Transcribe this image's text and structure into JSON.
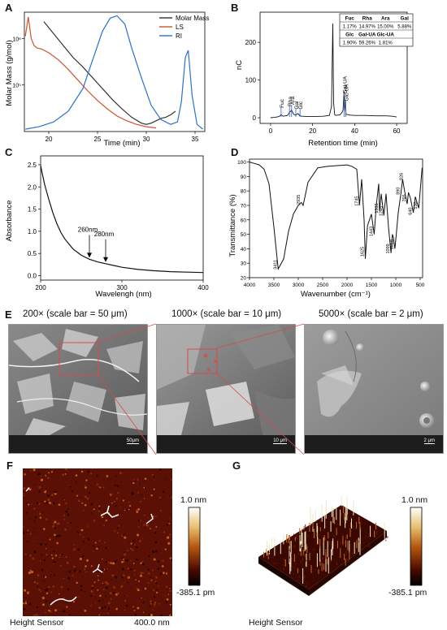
{
  "panels": {
    "A": {
      "label": "A"
    },
    "B": {
      "label": "B"
    },
    "C": {
      "label": "C"
    },
    "D": {
      "label": "D"
    },
    "E": {
      "label": "E"
    },
    "F": {
      "label": "F"
    },
    "G": {
      "label": "G"
    }
  },
  "chart_data": [
    {
      "id": "A",
      "type": "line",
      "xlabel": "Time (min)",
      "ylabel": "Molar Mass (g/mol)",
      "xticks": [
        "20",
        "25",
        "30",
        "35"
      ],
      "yticks": [
        "10⁶",
        "10⁵"
      ],
      "xlim": [
        17.5,
        36
      ],
      "legend_position": "top-right",
      "series": [
        {
          "name": "Molar Mass",
          "color": "#333333",
          "x": [
            19.5,
            20.5,
            21.5,
            22.5,
            23.5,
            24.5,
            25.5,
            26.5,
            27.5,
            28.5,
            29.5,
            30.0,
            30.5,
            31.0,
            31.5,
            32.0,
            32.5,
            33.0
          ],
          "y": [
            0.92,
            0.82,
            0.72,
            0.62,
            0.54,
            0.45,
            0.36,
            0.27,
            0.19,
            0.12,
            0.07,
            0.06,
            0.07,
            0.09,
            0.11,
            0.12,
            0.14,
            0.17
          ]
        },
        {
          "name": "LS",
          "color": "#d0542c",
          "x": [
            17.6,
            17.9,
            18.2,
            18.5,
            18.8,
            19.3,
            20.0,
            21.0,
            22.0,
            23.0,
            24.0,
            25.0,
            26.0,
            27.0,
            28.0,
            29.0,
            30.0,
            31.0
          ],
          "y": [
            0.8,
            0.96,
            0.78,
            0.72,
            0.7,
            0.69,
            0.66,
            0.6,
            0.52,
            0.43,
            0.34,
            0.26,
            0.19,
            0.13,
            0.09,
            0.06,
            0.04,
            0.03
          ]
        },
        {
          "name": "RI",
          "color": "#2a6fd6",
          "x": [
            17.6,
            19.0,
            20.5,
            22.0,
            23.5,
            24.5,
            25.5,
            26.3,
            27.0,
            27.8,
            28.5,
            29.5,
            30.5,
            31.5,
            32.5,
            33.2,
            33.6,
            34.0,
            34.3,
            34.7,
            35.2,
            35.8
          ],
          "y": [
            0.02,
            0.04,
            0.08,
            0.17,
            0.36,
            0.6,
            0.84,
            0.95,
            0.97,
            0.9,
            0.7,
            0.45,
            0.22,
            0.1,
            0.06,
            0.08,
            0.25,
            0.62,
            0.68,
            0.3,
            0.06,
            0.02
          ]
        }
      ]
    },
    {
      "id": "B",
      "type": "line",
      "xlabel": "Retention time (min)",
      "ylabel": "nC",
      "xticks": [
        "0",
        "20",
        "40",
        "60"
      ],
      "yticks": [
        "0",
        "100",
        "200"
      ],
      "xlim": [
        -5,
        65
      ],
      "ylim": [
        -15,
        280
      ],
      "series": [
        {
          "name": "",
          "color": "#111111",
          "x": [
            0,
            2,
            4,
            5,
            6,
            8,
            9,
            10,
            11,
            12,
            13,
            14,
            15,
            18,
            20,
            25,
            28,
            29,
            29.6,
            30,
            30.5,
            31,
            33,
            34,
            34.5,
            35,
            35.5,
            36,
            38,
            40,
            45,
            50,
            55,
            58,
            60
          ],
          "y": [
            0,
            1,
            3,
            8,
            4,
            6,
            14,
            20,
            9,
            7,
            11,
            5,
            4,
            3,
            3,
            4,
            6,
            30,
            250,
            40,
            8,
            6,
            8,
            14,
            20,
            70,
            25,
            9,
            7,
            6,
            6,
            5,
            5,
            4,
            2
          ]
        }
      ],
      "annotations": [
        "Fuc",
        "Rha",
        "Ara",
        "Gal",
        "Glc",
        "Gal-UA",
        "Glc-UA"
      ],
      "table": {
        "header1": [
          "Fuc",
          "Rha",
          "Ara",
          "Gal"
        ],
        "row1": [
          "1.17%",
          "14.97%",
          "15.00%",
          "5.88%"
        ],
        "header2": [
          "Glc",
          "Gal-UA",
          "Glc-UA",
          ""
        ],
        "row2": [
          "1.90%",
          "59.26%",
          "1.81%",
          ""
        ]
      }
    },
    {
      "id": "C",
      "type": "line",
      "xlabel": "Wavelengh (nm)",
      "ylabel": "Absorbance",
      "xticks": [
        "200",
        "300",
        "400"
      ],
      "yticks": [
        "0.0",
        "0.5",
        "1.0",
        "1.5",
        "2.0",
        "2.5"
      ],
      "xlim": [
        200,
        400
      ],
      "ylim": [
        -0.1,
        2.7
      ],
      "series": [
        {
          "name": "",
          "color": "#111111",
          "x": [
            200,
            202,
            205,
            210,
            215,
            220,
            225,
            230,
            240,
            250,
            260,
            270,
            280,
            290,
            300,
            320,
            340,
            360,
            380,
            400
          ],
          "y": [
            2.48,
            2.3,
            2.05,
            1.72,
            1.42,
            1.17,
            0.97,
            0.82,
            0.6,
            0.46,
            0.37,
            0.31,
            0.27,
            0.23,
            0.19,
            0.14,
            0.11,
            0.09,
            0.08,
            0.07
          ]
        }
      ],
      "annotations": [
        "260nm",
        "280nm"
      ]
    },
    {
      "id": "D",
      "type": "line",
      "xlabel": "Wavenumber (cm⁻¹)",
      "ylabel": "Transmittance (%)",
      "xticks": [
        "4000",
        "3500",
        "3000",
        "2500",
        "2000",
        "1500",
        "1000",
        "500"
      ],
      "yticks": [
        "20",
        "30",
        "40",
        "50",
        "60",
        "70",
        "80",
        "90",
        "100"
      ],
      "xlim": [
        4000,
        450
      ],
      "ylim": [
        20,
        102
      ],
      "series": [
        {
          "name": "",
          "color": "#111111",
          "x": [
            4000,
            3900,
            3800,
            3700,
            3600,
            3500,
            3411,
            3300,
            3200,
            3100,
            3000,
            2935,
            2900,
            2800,
            2600,
            2400,
            2200,
            2000,
            1900,
            1800,
            1745,
            1700,
            1650,
            1625,
            1580,
            1500,
            1443,
            1400,
            1350,
            1333,
            1300,
            1245,
            1200,
            1150,
            1099,
            1070,
            1050,
            1018,
            990,
            950,
            900,
            860,
            820,
            766,
            740,
            700,
            640,
            600,
            530,
            500,
            460
          ],
          "y": [
            100,
            99,
            98,
            95,
            85,
            55,
            26,
            33,
            52,
            64,
            70,
            72,
            70,
            86,
            96,
            97,
            97.5,
            98,
            97,
            95,
            70,
            88,
            60,
            33,
            56,
            64,
            50,
            70,
            85,
            66,
            78,
            63,
            78,
            55,
            37,
            50,
            48,
            40,
            50,
            65,
            77,
            88,
            80,
            71,
            79,
            75,
            65,
            76,
            68,
            80,
            96
          ]
        }
      ],
      "peaks": [
        "3411",
        "2935",
        "1745",
        "1625",
        "1443",
        "1333",
        "1245",
        "1099",
        "1018",
        "890",
        "826",
        "766",
        "640",
        "530"
      ]
    }
  ],
  "sem": {
    "titles": [
      "200× (scale bar = 50 μm)",
      "1000× (scale bar = 10 μm)",
      "5000× (scale bar = 2 μm)"
    ],
    "scalebars": [
      "50μm",
      "10 μm",
      "2 μm"
    ]
  },
  "afm": {
    "colorbar_max": "1.0 nm",
    "colorbar_min": "-385.1 pm",
    "caption_f": "Height Sensor",
    "scale_f": "400.0 nm",
    "caption_g": "Height Sensor"
  }
}
